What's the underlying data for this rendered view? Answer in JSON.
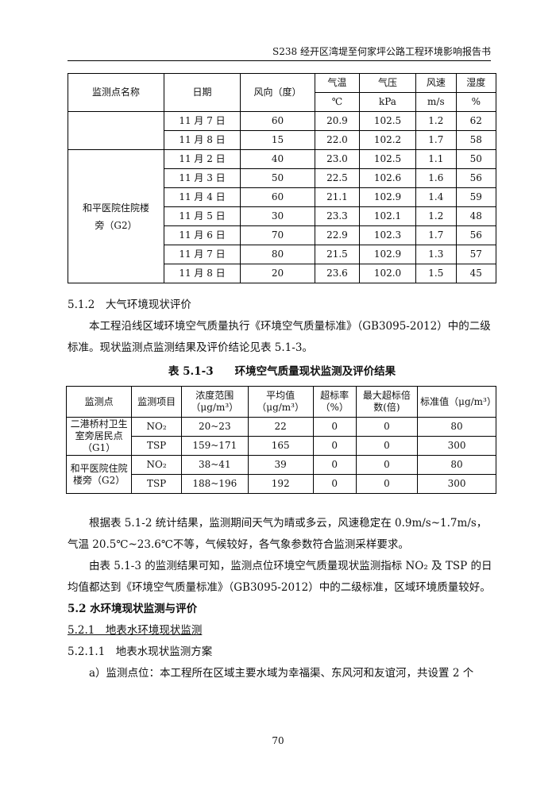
{
  "header": "S238 经开区湾堤至何家坪公路工程环境影响报告书",
  "table1": {
    "headers": {
      "site": "监测点名称",
      "date": "日期",
      "wind_dir": "风向（度）",
      "temp": "气温",
      "pressure": "气压",
      "speed": "风速",
      "humidity": "湿度",
      "temp_unit": "℃",
      "pressure_unit": "kPa",
      "speed_unit": "m/s",
      "humidity_unit": "%"
    },
    "rows_prev": [
      [
        "11 月 7 日",
        "60",
        "20.9",
        "102.5",
        "1.2",
        "62"
      ],
      [
        "11 月 8 日",
        "15",
        "22.0",
        "102.2",
        "1.7",
        "58"
      ]
    ],
    "g2_site": "和平医院住院楼旁（G2）",
    "rows_g2": [
      [
        "11 月 2 日",
        "40",
        "23.0",
        "102.5",
        "1.1",
        "50"
      ],
      [
        "11 月 3 日",
        "50",
        "22.5",
        "102.6",
        "1.6",
        "56"
      ],
      [
        "11 月 4 日",
        "60",
        "21.1",
        "102.9",
        "1.4",
        "59"
      ],
      [
        "11 月 5 日",
        "30",
        "23.3",
        "102.1",
        "1.2",
        "48"
      ],
      [
        "11 月 6 日",
        "70",
        "22.9",
        "102.3",
        "1.7",
        "56"
      ],
      [
        "11 月 7 日",
        "80",
        "21.5",
        "102.9",
        "1.3",
        "57"
      ],
      [
        "11 月 8 日",
        "20",
        "23.6",
        "102.0",
        "1.5",
        "45"
      ]
    ]
  },
  "sec512": "5.1.2　大气环境现状评价",
  "para1": "本工程沿线区域环境空气质量执行《环境空气质量标准》（GB3095-2012）中的二级标准。现状监测点监测结果及评价结论见表 5.1-3。",
  "table2": {
    "caption": "表 5.1-3　　环境空气质量现状监测及评价结果",
    "headers": [
      "监测点",
      "监测项目",
      "浓度范围（μg/m³）",
      "平均值（μg/m³）",
      "超标率（%）",
      "最大超标倍数(倍)",
      "标准值（μg/m³）"
    ],
    "groups": [
      {
        "site": "二港桥村卫生室旁居民点（G1）",
        "rows": [
          [
            "NO₂",
            "20~23",
            "22",
            "0",
            "0",
            "80"
          ],
          [
            "TSP",
            "159~171",
            "165",
            "0",
            "0",
            "300"
          ]
        ]
      },
      {
        "site": "和平医院住院楼旁（G2）",
        "rows": [
          [
            "NO₂",
            "38~41",
            "39",
            "0",
            "0",
            "80"
          ],
          [
            "TSP",
            "188~196",
            "192",
            "0",
            "0",
            "300"
          ]
        ]
      }
    ]
  },
  "para2": "根据表 5.1-2 统计结果，监测期间天气为晴或多云，风速稳定在 0.9m/s~1.7m/s，气温 20.5℃~23.6℃不等，气候较好，各气象参数符合监测采样要求。",
  "para3": "由表 5.1-3 的监测结果可知，监测点位环境空气质量现状监测指标 NO₂ 及 TSP 的日均值都达到《环境空气质量标准》（GB3095-2012）中的二级标准，区域环境质量较好。",
  "sec52": "5.2 水环境现状监测与评价",
  "sec521": "5.2.1　地表水环境现状监测",
  "sec5211": "5.2.1.1　地表水现状监测方案",
  "para4": "a）监测点位：本工程所在区域主要水域为幸福渠、东风河和友谊河，共设置 2 个",
  "page_number": "70"
}
